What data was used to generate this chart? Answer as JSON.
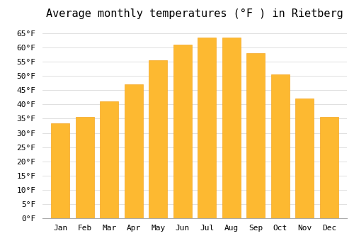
{
  "title": "Average monthly temperatures (°F ) in Rietberg",
  "months": [
    "Jan",
    "Feb",
    "Mar",
    "Apr",
    "May",
    "Jun",
    "Jul",
    "Aug",
    "Sep",
    "Oct",
    "Nov",
    "Dec"
  ],
  "values": [
    33.5,
    35.5,
    41.0,
    47.0,
    55.5,
    61.0,
    63.5,
    63.5,
    58.0,
    50.5,
    42.0,
    35.5
  ],
  "bar_color": "#FDB931",
  "bar_edge_color": "#F5A623",
  "background_color": "#ffffff",
  "grid_color": "#e0e0e0",
  "ylim": [
    0,
    68
  ],
  "yticks": [
    0,
    5,
    10,
    15,
    20,
    25,
    30,
    35,
    40,
    45,
    50,
    55,
    60,
    65
  ],
  "title_fontsize": 11,
  "tick_fontsize": 8,
  "font_family": "monospace"
}
